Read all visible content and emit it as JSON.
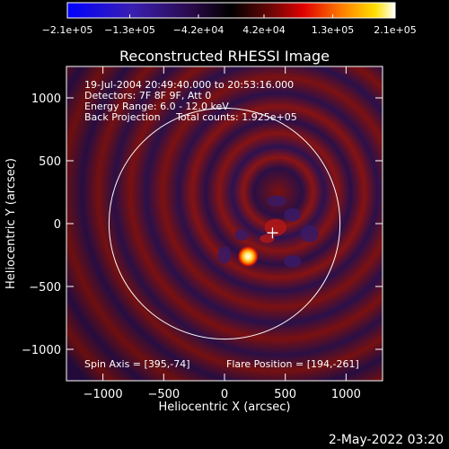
{
  "chart_data": {
    "type": "heatmap",
    "title": "Reconstructed RHESSI Image",
    "xlabel": "Heliocentric X (arcsec)",
    "ylabel": "Heliocentric Y (arcsec)",
    "xlim": [
      -1300,
      1300
    ],
    "ylim": [
      -1250,
      1250
    ],
    "x_ticks": [
      {
        "value": -1000,
        "label": "−1000"
      },
      {
        "value": -500,
        "label": "−500"
      },
      {
        "value": 0,
        "label": "0"
      },
      {
        "value": 500,
        "label": "500"
      },
      {
        "value": 1000,
        "label": "1000"
      }
    ],
    "y_ticks": [
      {
        "value": 1000,
        "label": "1000"
      },
      {
        "value": 500,
        "label": "500"
      },
      {
        "value": 0,
        "label": "0"
      },
      {
        "value": -500,
        "label": "−500"
      },
      {
        "value": -1000,
        "label": "−1000"
      }
    ],
    "colorbar": {
      "range": [
        -210000,
        210000
      ],
      "tick_values": [
        -210000,
        -130000,
        -42000,
        42000,
        130000,
        210000
      ],
      "tick_labels": [
        "−2.1e+05",
        "−1.3e+05",
        "−4.2e+04",
        "4.2e+04",
        "1.3e+05",
        "2.1e+05"
      ]
    },
    "info_lines": [
      "19-Jul-2004 20:49:40.000 to 20:53:16.000",
      "Detectors: 7F 8F 9F, Att 0",
      "Energy Range: 6.0 - 12.0 keV",
      "Back Projection     Total counts: 1.925e+05"
    ],
    "spin_axis_text": "Spin Axis = [395,-74]",
    "flare_position_text": "Flare Position = [194,-261]",
    "spin_axis": [
      395,
      -74
    ],
    "flare_position": [
      194,
      -261
    ],
    "solar_limb_radius": 950,
    "timestamp": "2-May-2022 03:20"
  }
}
